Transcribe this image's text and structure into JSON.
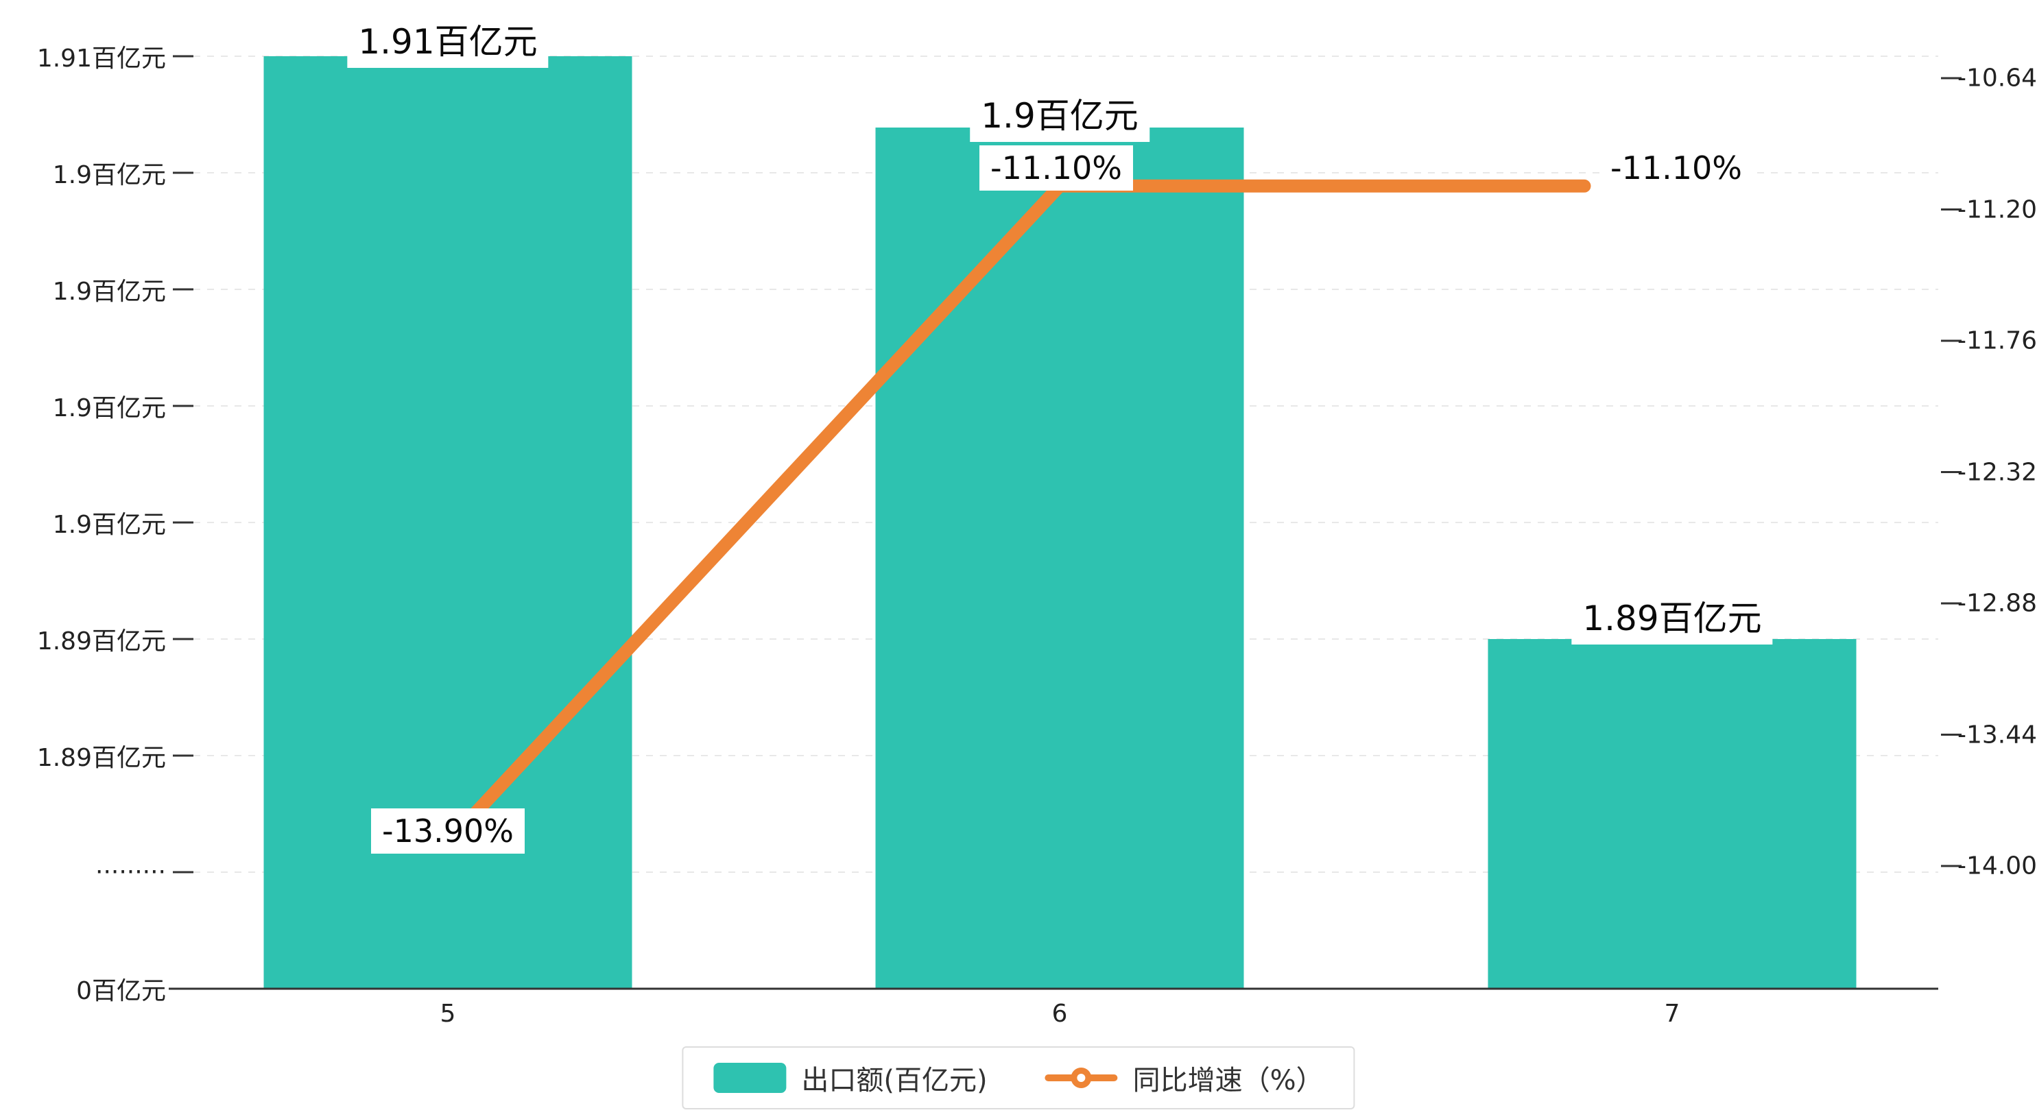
{
  "chart_data": {
    "type": "bar",
    "combo": "bar+line",
    "categories": [
      "5",
      "6",
      "7"
    ],
    "series": [
      {
        "name": "出口额(百亿元)",
        "type": "bar",
        "color": "#2EC2B0",
        "values": [
          1.91,
          1.9,
          1.89
        ],
        "value_labels": [
          "1.91百亿元",
          "1.9百亿元",
          "1.89百亿元"
        ]
      },
      {
        "name": "同比增速（%）",
        "type": "line",
        "color": "#EE8435",
        "values": [
          -13.9,
          -11.1,
          -11.1
        ],
        "value_labels": [
          "-13.90%",
          "-11.10%",
          "-11.10%"
        ]
      }
    ],
    "y_axis_left": {
      "unit": "百亿元",
      "tick_labels": [
        "1.91百亿元",
        "1.9百亿元",
        "1.9百亿元",
        "1.9百亿元",
        "1.9百亿元",
        "1.89百亿元",
        "1.89百亿元",
        "·········",
        "0百亿元"
      ],
      "axis_break": true
    },
    "y_axis_right": {
      "tick_labels": [
        "-10.64",
        "-11.20",
        "-11.76",
        "-12.32",
        "-12.88",
        "-13.44",
        "-14.00"
      ],
      "max": -10.64,
      "min": -14.0,
      "step": 0.56
    },
    "x_axis": {
      "tick_labels": [
        "5",
        "6",
        "7"
      ]
    },
    "legend": {
      "items": [
        {
          "label": "出口额(百亿元)",
          "color": "#2EC2B0",
          "marker": "rect"
        },
        {
          "label": "同比增速（%）",
          "color": "#EE8435",
          "marker": "line-dot"
        }
      ],
      "position": "bottom-center"
    },
    "grid": {
      "dashed": true,
      "color": "#e8e8e8",
      "background": "#ffffff"
    }
  }
}
